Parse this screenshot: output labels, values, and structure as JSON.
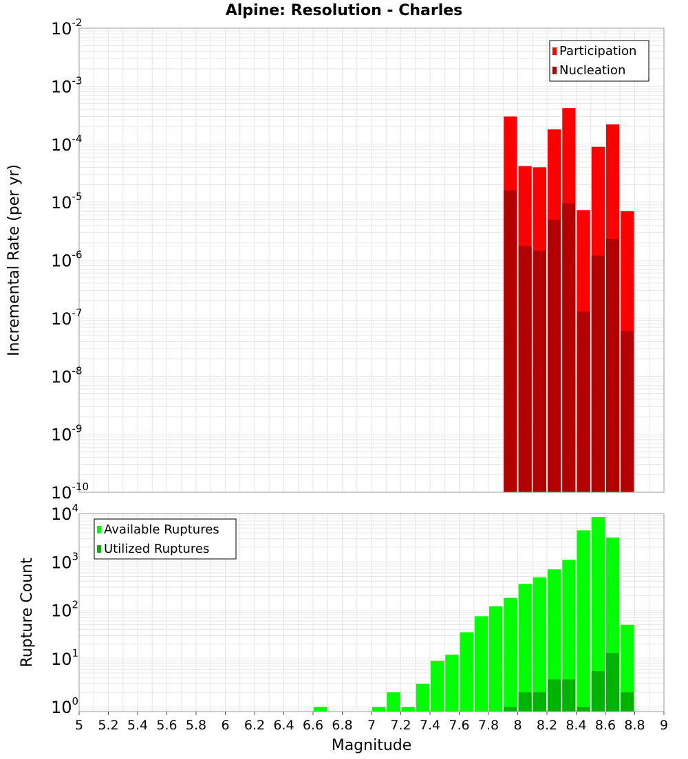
{
  "chart_data": [
    {
      "type": "bar",
      "title": "Alpine: Resolution - Charles",
      "xlabel": "",
      "ylabel": "Incremental Rate (per yr)",
      "yscale": "log",
      "ylim": [
        1e-10,
        0.01
      ],
      "xlim": [
        5,
        9
      ],
      "bin_width": 0.1,
      "grid": true,
      "legend": "top-right",
      "y_tick_labels": [
        {
          "value": 1e-10,
          "mant": "10",
          "exp": "-10"
        },
        {
          "value": 1e-09,
          "mant": "10",
          "exp": "-9"
        },
        {
          "value": 1e-08,
          "mant": "10",
          "exp": "-8"
        },
        {
          "value": 1e-07,
          "mant": "10",
          "exp": "-7"
        },
        {
          "value": 1e-06,
          "mant": "10",
          "exp": "-6"
        },
        {
          "value": 1e-05,
          "mant": "10",
          "exp": "-5"
        },
        {
          "value": 0.0001,
          "mant": "10",
          "exp": "-4"
        },
        {
          "value": 0.001,
          "mant": "10",
          "exp": "-3"
        },
        {
          "value": 0.01,
          "mant": "10",
          "exp": "-2"
        }
      ],
      "x": [
        7.95,
        8.05,
        8.15,
        8.25,
        8.35,
        8.45,
        8.55,
        8.65,
        8.75
      ],
      "series": [
        {
          "name": "Participation",
          "color": "#ff0000",
          "values": [
            0.0003,
            4.2e-05,
            4e-05,
            0.00018,
            0.00042,
            7.3e-06,
            9e-05,
            0.00022,
            7e-06
          ]
        },
        {
          "name": "Nucleation",
          "color": "#b30000",
          "values": [
            1.6e-05,
            1.75e-06,
            1.45e-06,
            5e-06,
            9.5e-06,
            1.3e-07,
            1.2e-06,
            2.3e-06,
            6e-08
          ]
        }
      ]
    },
    {
      "type": "bar",
      "title": "",
      "xlabel": "Magnitude",
      "ylabel": "Rupture Count",
      "yscale": "log",
      "ylim": [
        0.8,
        10000
      ],
      "xlim": [
        5,
        9
      ],
      "bin_width": 0.1,
      "grid": true,
      "legend": "top-left",
      "x_ticks": [
        "5",
        "5.2",
        "5.4",
        "5.6",
        "5.8",
        "6",
        "6.2",
        "6.4",
        "6.6",
        "6.8",
        "7",
        "7.2",
        "7.4",
        "7.6",
        "7.8",
        "8",
        "8.2",
        "8.4",
        "8.6",
        "8.8",
        "9"
      ],
      "y_tick_labels": [
        {
          "value": 1,
          "mant": "10",
          "exp": "0"
        },
        {
          "value": 10,
          "mant": "10",
          "exp": "1"
        },
        {
          "value": 100,
          "mant": "10",
          "exp": "2"
        },
        {
          "value": 1000,
          "mant": "10",
          "exp": "3"
        },
        {
          "value": 10000,
          "mant": "10",
          "exp": "4"
        }
      ],
      "x": [
        6.65,
        7.05,
        7.15,
        7.25,
        7.35,
        7.45,
        7.55,
        7.65,
        7.75,
        7.85,
        7.95,
        8.05,
        8.15,
        8.25,
        8.35,
        8.45,
        8.55,
        8.65,
        8.75
      ],
      "series": [
        {
          "name": "Available Ruptures",
          "color": "#00ff00",
          "values": [
            1,
            1,
            2,
            1,
            3,
            9,
            12,
            35,
            75,
            120,
            180,
            350,
            480,
            700,
            1100,
            4500,
            8500,
            3200,
            50
          ]
        },
        {
          "name": "Utilized Ruptures",
          "color": "#00b300",
          "values": [
            0,
            0,
            0,
            0,
            0,
            0,
            0,
            0,
            0,
            0,
            1,
            2,
            2,
            3.7,
            3.7,
            1,
            5.5,
            13,
            2
          ]
        }
      ]
    }
  ]
}
